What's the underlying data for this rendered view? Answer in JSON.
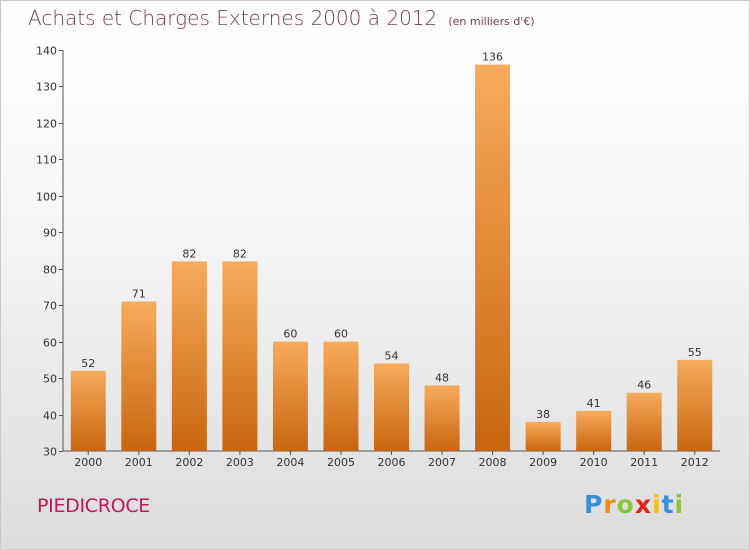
{
  "title": "Achats et Charges Externes 2000 à 2012",
  "unit": "(en milliers d'€)",
  "commune": "PIEDICROCE",
  "brand": {
    "letters": [
      "P",
      "r",
      "o",
      "x",
      "i",
      "t",
      "i"
    ],
    "colors": [
      "#3a8fd6",
      "#f08a1c",
      "#8cc63f",
      "#e2231a",
      "#f3c012",
      "#3a8fd6",
      "#8cc63f"
    ]
  },
  "colors": {
    "bar_light": "#f7ab5c",
    "bar_dark": "#c8660f",
    "title": "#7a3a52",
    "commune": "#c2185b"
  },
  "chart_data": {
    "type": "bar",
    "title": "Achats et Charges Externes 2000 à 2012",
    "categories": [
      "2000",
      "2001",
      "2002",
      "2003",
      "2004",
      "2005",
      "2006",
      "2007",
      "2008",
      "2009",
      "2010",
      "2011",
      "2012"
    ],
    "values": [
      52,
      71,
      82,
      82,
      60,
      60,
      54,
      48,
      136,
      38,
      41,
      46,
      55
    ],
    "ylim": [
      30,
      140
    ],
    "yticks": [
      30,
      40,
      50,
      60,
      70,
      80,
      90,
      100,
      110,
      120,
      130,
      140
    ],
    "grid": false,
    "data_labels": true
  }
}
